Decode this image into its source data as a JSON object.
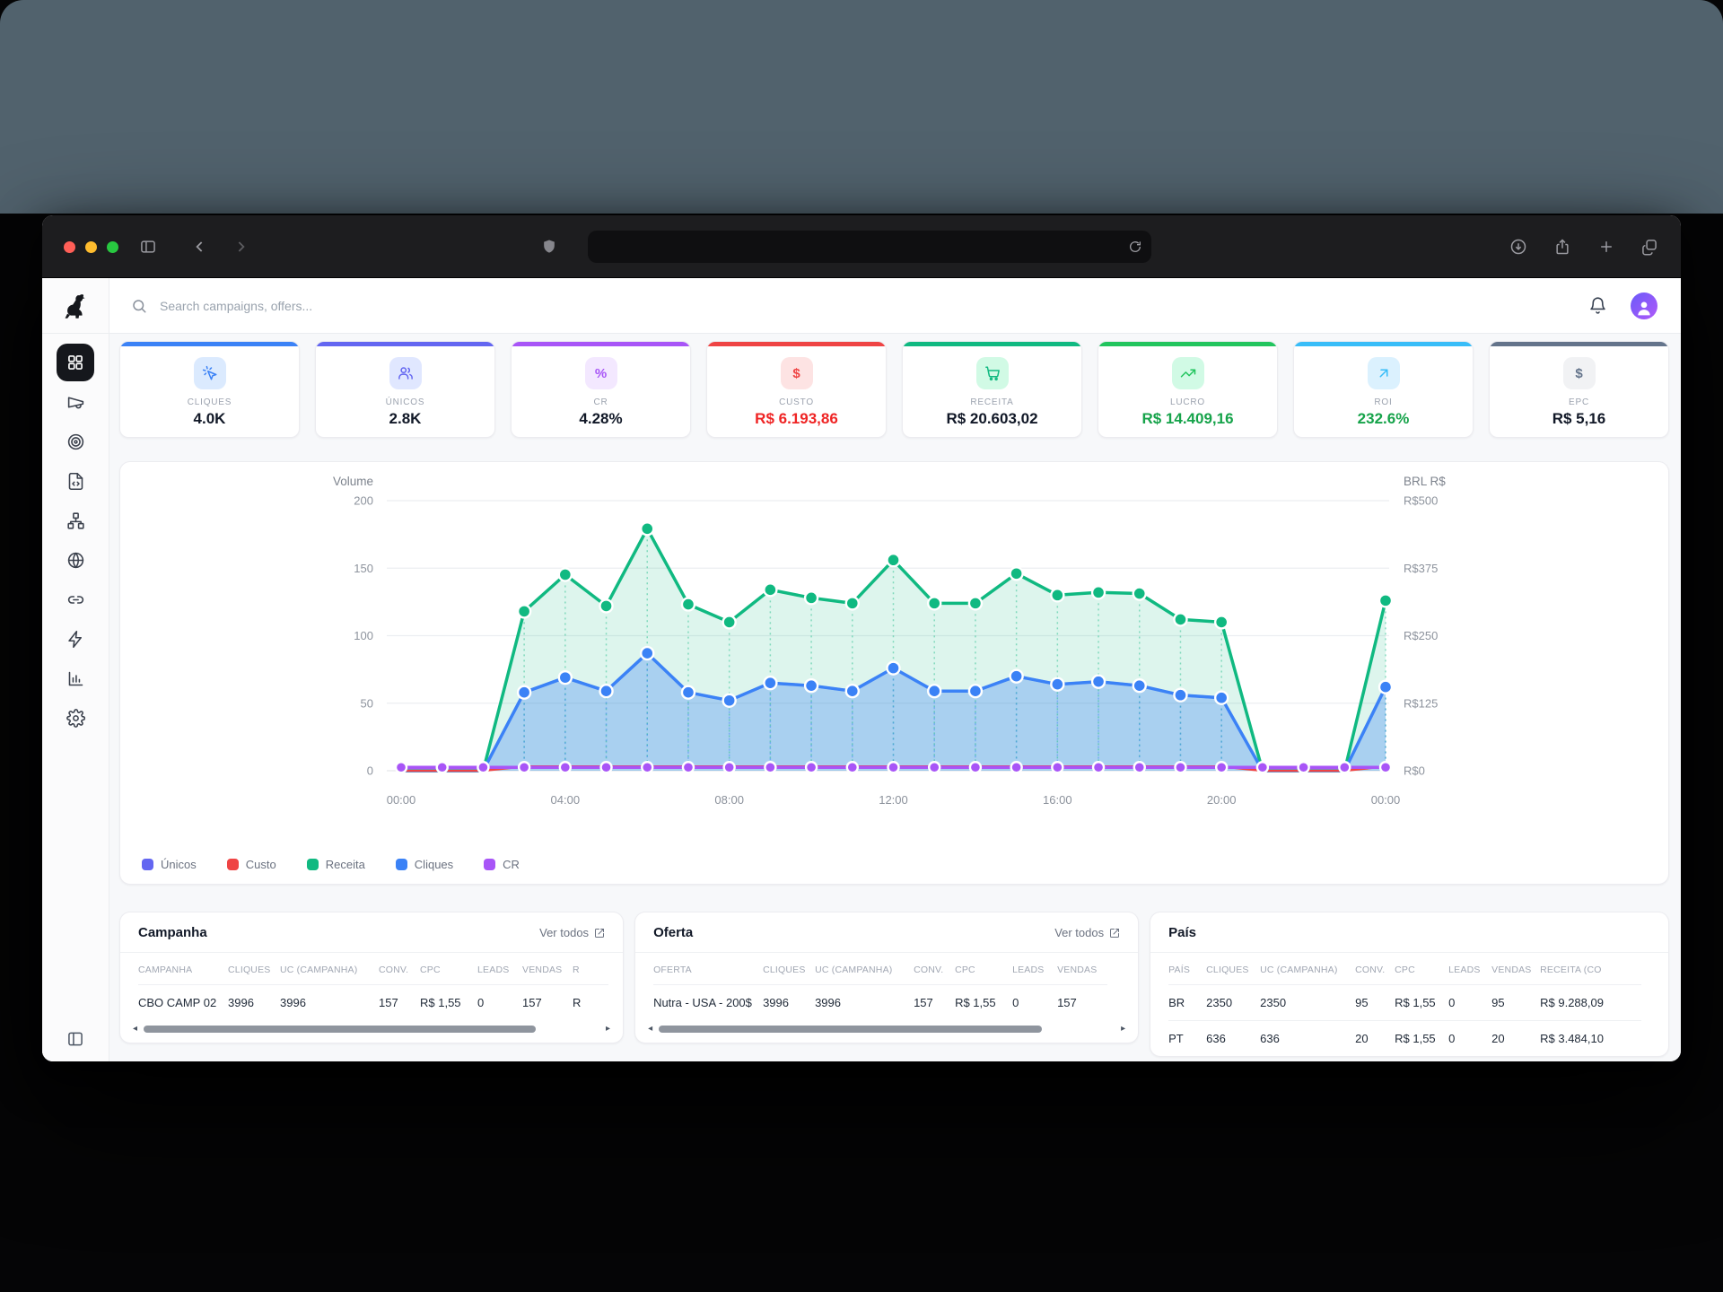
{
  "browser": {
    "url_value": "",
    "traffic_lights": {
      "close": "#ff5f57",
      "minimize": "#febc2e",
      "zoom": "#28c840"
    }
  },
  "topbar": {
    "search_placeholder": "Search campaigns, offers..."
  },
  "kpis": [
    {
      "id": "cliques",
      "label": "CLIQUES",
      "value": "4.0K",
      "accent": "#3b82f6",
      "icon": "click-icon",
      "value_color": "#111827"
    },
    {
      "id": "unicos",
      "label": "ÚNICOS",
      "value": "2.8K",
      "accent": "#6366f1",
      "icon": "users-icon",
      "value_color": "#111827"
    },
    {
      "id": "cr",
      "label": "CR",
      "value": "4.28%",
      "accent": "#a855f7",
      "icon": "percent-icon",
      "value_color": "#111827"
    },
    {
      "id": "custo",
      "label": "CUSTO",
      "value": "R$ 6.193,86",
      "accent": "#ef4444",
      "icon": "dollar-icon",
      "value_color": "#ef2424"
    },
    {
      "id": "receita",
      "label": "RECEITA",
      "value": "R$ 20.603,02",
      "accent": "#10b981",
      "icon": "cart-icon",
      "value_color": "#111827"
    },
    {
      "id": "lucro",
      "label": "LUCRO",
      "value": "R$ 14.409,16",
      "accent": "#22c55e",
      "icon": "trend-up-icon",
      "value_color": "#16a34a"
    },
    {
      "id": "roi",
      "label": "ROI",
      "value": "232.6%",
      "accent": "#38bdf8",
      "icon": "arrow-up-right-icon",
      "value_color": "#16a34a"
    },
    {
      "id": "epc",
      "label": "EPC",
      "value": "R$ 5,16",
      "accent": "#64748b",
      "icon": "dollar-icon",
      "value_color": "#111827"
    }
  ],
  "chart_data": {
    "type": "line",
    "points": 25,
    "x_interval": "hourly",
    "x_tick_labels": [
      "00:00",
      "04:00",
      "08:00",
      "12:00",
      "16:00",
      "20:00",
      "00:00"
    ],
    "x_tick_indices": [
      0,
      4,
      8,
      12,
      16,
      20,
      24
    ],
    "left_axis": {
      "title": "Volume",
      "range": [
        0,
        200
      ],
      "ticks": [
        "200",
        "150",
        "100",
        "50",
        "0"
      ]
    },
    "right_axis": {
      "title": "BRL R$",
      "range": [
        0,
        500
      ],
      "ticks": [
        "R$500",
        "R$375",
        "R$250",
        "R$125",
        "R$0"
      ]
    },
    "grid": true,
    "legend_position": "bottom-left",
    "series": [
      {
        "name": "Receita",
        "color": "#10b981",
        "axis": "right",
        "area": true,
        "dots": true,
        "values": [
          0,
          0,
          0,
          295,
          363,
          305,
          448,
          308,
          275,
          335,
          320,
          310,
          390,
          310,
          310,
          365,
          325,
          330,
          328,
          280,
          275,
          0,
          0,
          0,
          315
        ]
      },
      {
        "name": "Únicos",
        "color": "#6366f1",
        "axis": "left",
        "area": false,
        "dots": false,
        "values": [
          0,
          0,
          0,
          58,
          69,
          59,
          87,
          58,
          52,
          65,
          63,
          59,
          76,
          59,
          59,
          70,
          64,
          66,
          63,
          56,
          54,
          0,
          0,
          0,
          62
        ]
      },
      {
        "name": "Cliques",
        "color": "#3b82f6",
        "axis": "left",
        "area": true,
        "dots": true,
        "values": [
          0,
          0,
          0,
          58,
          69,
          59,
          87,
          58,
          52,
          65,
          63,
          59,
          76,
          59,
          59,
          70,
          64,
          66,
          63,
          56,
          54,
          0,
          0,
          0,
          62
        ]
      },
      {
        "name": "Custo",
        "color": "#ef4444",
        "axis": "left",
        "area": false,
        "dots": false,
        "values": [
          0,
          0,
          0,
          3.2,
          3.2,
          3.2,
          3.2,
          3.2,
          3.2,
          3.2,
          3.2,
          3.2,
          3.2,
          3.2,
          3.2,
          3.2,
          3.2,
          3.2,
          3.2,
          3.2,
          3.2,
          0,
          0,
          0,
          3.2
        ]
      },
      {
        "name": "CR",
        "color": "#a855f7",
        "axis": "left",
        "area": false,
        "dots": true,
        "values": [
          2.5,
          2.5,
          2.5,
          2.5,
          2.5,
          2.5,
          2.5,
          2.5,
          2.5,
          2.5,
          2.5,
          2.5,
          2.5,
          2.5,
          2.5,
          2.5,
          2.5,
          2.5,
          2.5,
          2.5,
          2.5,
          2.5,
          2.5,
          2.5,
          2.5
        ]
      }
    ],
    "legend": [
      {
        "label": "Únicos",
        "color": "#6366f1"
      },
      {
        "label": "Custo",
        "color": "#ef4444"
      },
      {
        "label": "Receita",
        "color": "#10b981"
      },
      {
        "label": "Cliques",
        "color": "#3b82f6"
      },
      {
        "label": "CR",
        "color": "#a855f7"
      }
    ]
  },
  "tables": [
    {
      "id": "campanha",
      "title": "Campanha",
      "link_label": "Ver todos",
      "headers": [
        "CAMPANHA",
        "CLIQUES",
        "UC (CAMPANHA)",
        "CONV.",
        "CPC",
        "LEADS",
        "VENDAS",
        "R"
      ],
      "rows": [
        [
          "CBO CAMP 02",
          "3996",
          "3996",
          "157",
          "R$ 1,55",
          "0",
          "157",
          "R"
        ]
      ],
      "scrollbar": true,
      "thumb_pct": 86
    },
    {
      "id": "oferta",
      "title": "Oferta",
      "link_label": "Ver todos",
      "headers": [
        "OFERTA",
        "CLIQUES",
        "UC (CAMPANHA)",
        "CONV.",
        "CPC",
        "LEADS",
        "VENDAS"
      ],
      "rows": [
        [
          "Nutra - USA - 200$",
          "3996",
          "3996",
          "157",
          "R$ 1,55",
          "0",
          "157"
        ]
      ],
      "scrollbar": true,
      "thumb_pct": 84
    },
    {
      "id": "pais",
      "title": "País",
      "headers": [
        "PAÍS",
        "CLIQUES",
        "UC (CAMPANHA)",
        "CONV.",
        "CPC",
        "LEADS",
        "VENDAS",
        "RECEITA (CO"
      ],
      "rows": [
        [
          "BR",
          "2350",
          "2350",
          "95",
          "R$ 1,55",
          "0",
          "95",
          "R$ 9.288,09"
        ],
        [
          "PT",
          "636",
          "636",
          "20",
          "R$ 1,55",
          "0",
          "20",
          "R$ 3.484,10"
        ]
      ],
      "scrollbar": false
    }
  ]
}
